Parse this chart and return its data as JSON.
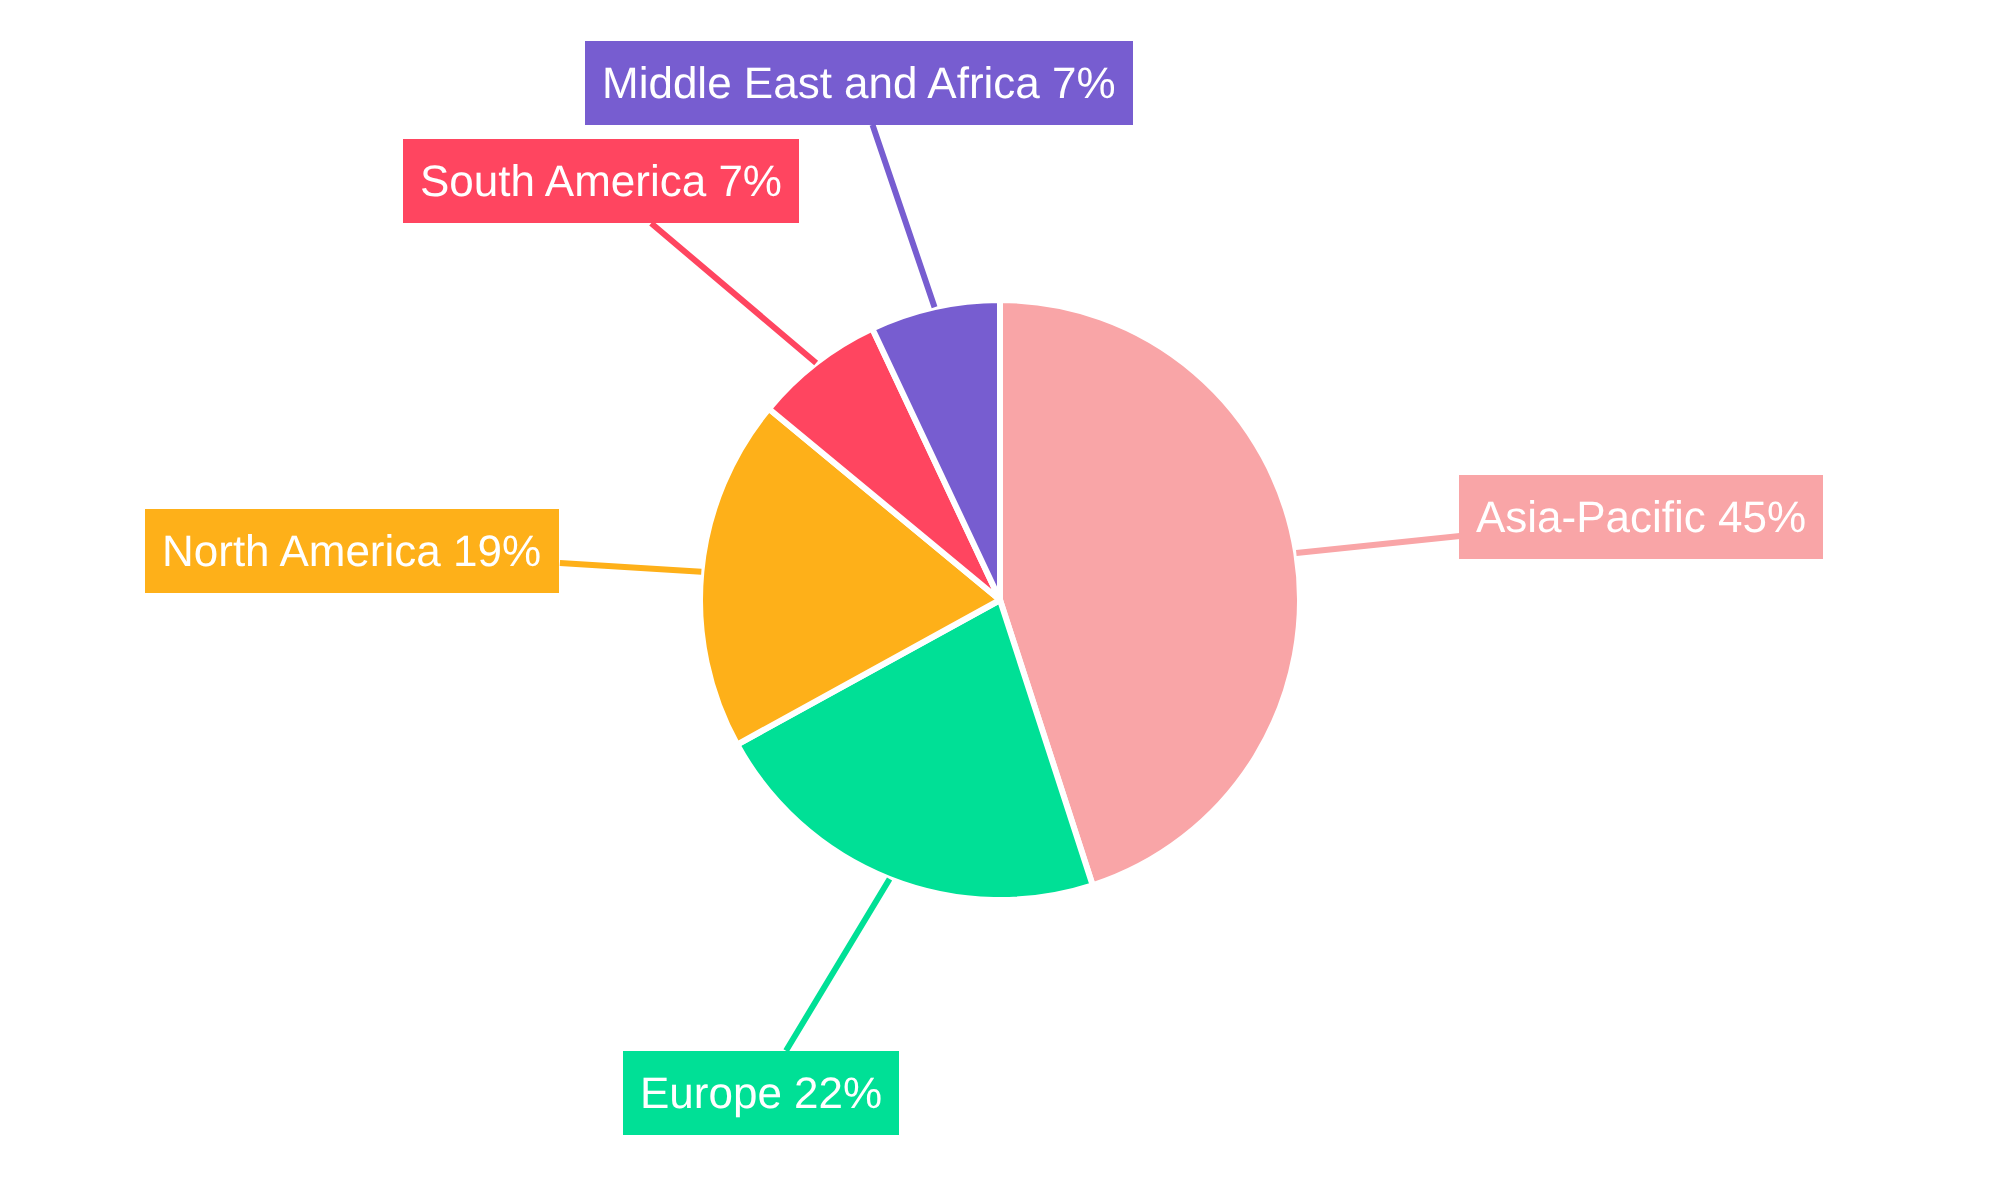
{
  "chart_data": {
    "type": "pie",
    "categories": [
      "Asia-Pacific",
      "Europe",
      "North America",
      "South America",
      "Middle East and Africa"
    ],
    "values": [
      45,
      22,
      19,
      7,
      7
    ],
    "value_labels": [
      "45%",
      "22%",
      "19%",
      "7%",
      "7%"
    ],
    "colors": [
      "#f9a5a7",
      "#00e096",
      "#feb019",
      "#ff4560",
      "#775dd0"
    ]
  }
}
